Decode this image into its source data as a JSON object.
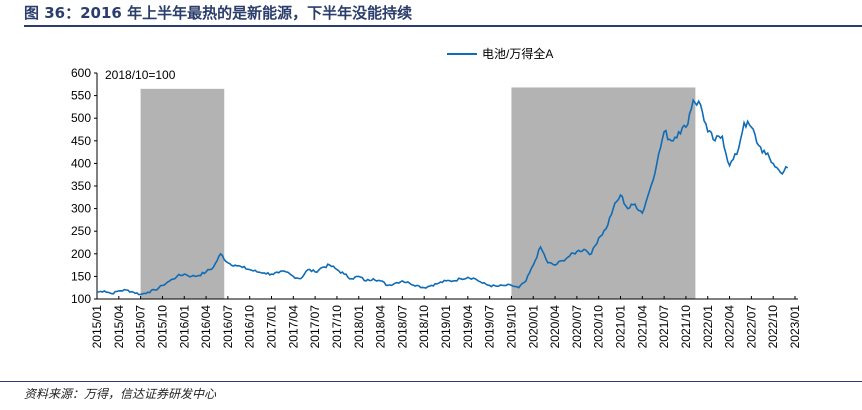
{
  "title": "图 36：2016 年上半年最热的是新能源，下半年没能持续",
  "source": "资料来源：万得，信达证券研发中心",
  "chart_data": {
    "type": "line",
    "annotation": "2018/10=100",
    "legend": [
      "电池/万得全A"
    ],
    "legend_position": "top-right",
    "line_color": "#0f6cb6",
    "shade_color": "#b3b3b3",
    "ylim": [
      100,
      600
    ],
    "yticks": [
      100,
      150,
      200,
      250,
      300,
      350,
      400,
      450,
      500,
      550,
      600
    ],
    "xticks": [
      "2015/01",
      "2015/04",
      "2015/07",
      "2015/10",
      "2016/01",
      "2016/04",
      "2016/07",
      "2016/10",
      "2017/01",
      "2017/04",
      "2017/07",
      "2017/10",
      "2018/01",
      "2018/04",
      "2018/07",
      "2018/10",
      "2019/01",
      "2019/04",
      "2019/07",
      "2019/10",
      "2020/01",
      "2020/04",
      "2020/07",
      "2020/10",
      "2021/01",
      "2021/04",
      "2021/07",
      "2021/10",
      "2022/01",
      "2022/04",
      "2022/07",
      "2022/10",
      "2023/01"
    ],
    "shaded_periods": [
      {
        "start_month": 6,
        "end_month": 17.5,
        "top": 565
      },
      {
        "start_month": 57,
        "end_month": 82.3,
        "top": 568
      }
    ],
    "series": [
      {
        "name": "电池/万得全A",
        "start": "2015/01",
        "frequency": "monthly",
        "values": [
          115,
          118,
          112,
          118,
          120,
          115,
          110,
          115,
          120,
          130,
          140,
          150,
          155,
          150,
          152,
          160,
          170,
          200,
          180,
          175,
          170,
          165,
          160,
          158,
          155,
          158,
          160,
          150,
          145,
          165,
          160,
          170,
          175,
          165,
          155,
          145,
          150,
          140,
          145,
          140,
          130,
          135,
          140,
          135,
          130,
          125,
          130,
          135,
          140,
          140,
          145,
          148,
          145,
          135,
          130,
          128,
          130,
          130,
          125,
          140,
          175,
          215,
          180,
          175,
          185,
          195,
          205,
          210,
          200,
          235,
          255,
          300,
          330,
          300,
          310,
          290,
          340,
          400,
          470,
          450,
          470,
          480,
          540,
          530,
          470,
          450,
          460,
          395,
          420,
          490,
          480,
          440,
          420,
          400,
          380,
          390
        ]
      }
    ]
  }
}
